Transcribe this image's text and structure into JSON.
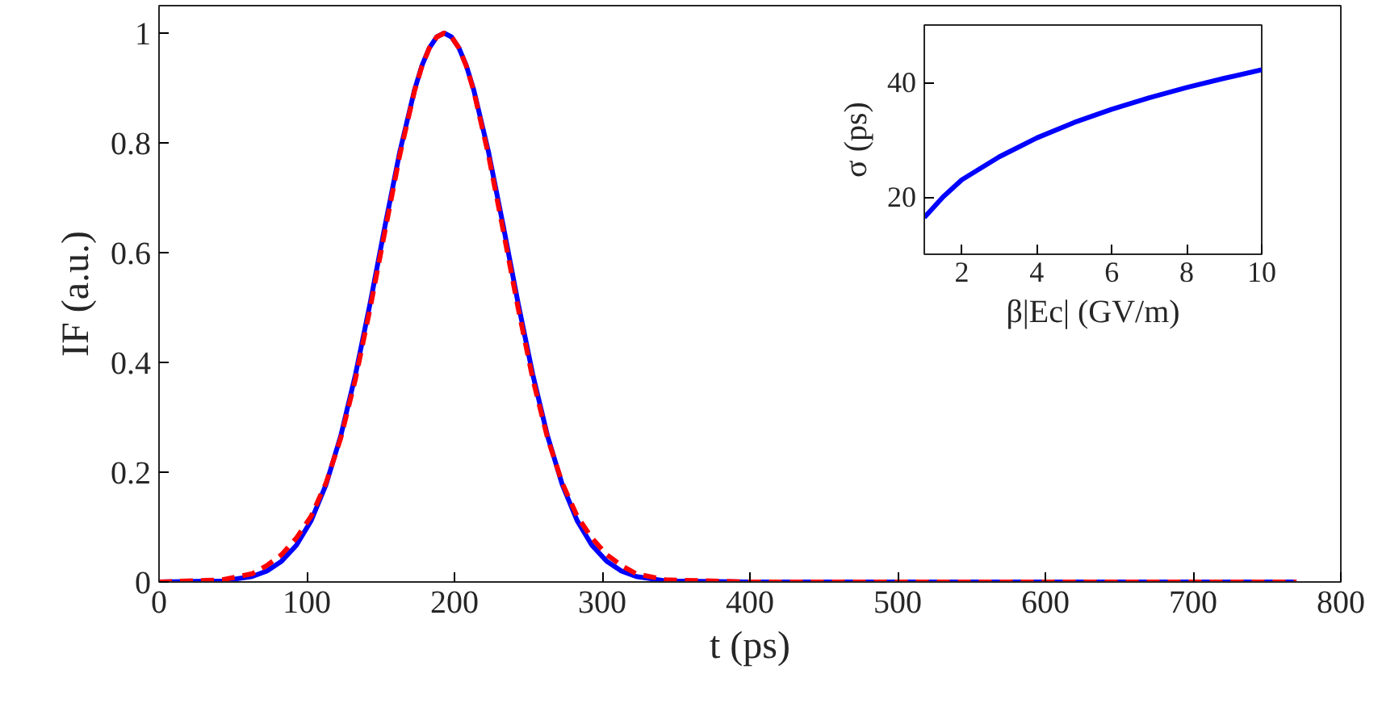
{
  "chart_data": [
    {
      "type": "line",
      "xlabel": "t (ps)",
      "ylabel": "IF (a.u.)",
      "xlim": [
        0,
        800
      ],
      "ylim": [
        0,
        1.05
      ],
      "xticks": [
        0,
        100,
        200,
        300,
        400,
        500,
        600,
        700,
        800
      ],
      "yticks": [
        0,
        0.2,
        0.4,
        0.6,
        0.8,
        1
      ],
      "grid": false,
      "series": [
        {
          "color": "#0000ff",
          "line_style": "solid",
          "x": [
            0,
            43,
            63,
            73,
            83,
            93,
            103,
            113,
            123,
            133,
            143,
            153,
            163,
            173,
            178,
            183,
            188,
            193,
            198,
            203,
            208,
            213,
            223,
            233,
            243,
            253,
            263,
            273,
            283,
            293,
            303,
            313,
            323,
            343,
            400,
            770
          ],
          "values": [
            0,
            0.002,
            0.01,
            0.02,
            0.038,
            0.067,
            0.112,
            0.177,
            0.266,
            0.378,
            0.509,
            0.649,
            0.784,
            0.897,
            0.941,
            0.973,
            0.993,
            1,
            0.993,
            0.973,
            0.941,
            0.897,
            0.784,
            0.649,
            0.509,
            0.378,
            0.266,
            0.177,
            0.112,
            0.067,
            0.038,
            0.02,
            0.01,
            0.002,
            0,
            0
          ]
        },
        {
          "color": "#ff0000",
          "line_style": "dashed",
          "x": [
            0,
            43,
            63,
            73,
            83,
            93,
            103,
            113,
            123,
            133,
            143,
            153,
            163,
            173,
            178,
            183,
            188,
            193,
            198,
            203,
            208,
            213,
            223,
            233,
            243,
            253,
            263,
            273,
            283,
            293,
            303,
            313,
            323,
            343,
            400,
            770
          ],
          "values": [
            0,
            0.004,
            0.015,
            0.03,
            0.05,
            0.08,
            0.12,
            0.18,
            0.262,
            0.37,
            0.5,
            0.64,
            0.778,
            0.895,
            0.94,
            0.973,
            0.993,
            1,
            0.993,
            0.973,
            0.94,
            0.895,
            0.778,
            0.64,
            0.5,
            0.37,
            0.262,
            0.18,
            0.12,
            0.08,
            0.05,
            0.03,
            0.015,
            0.004,
            0,
            0
          ]
        }
      ]
    },
    {
      "type": "line",
      "xlabel": "β|Ec| (GV/m)",
      "ylabel": "σ (ps)",
      "xlim": [
        1,
        10
      ],
      "ylim": [
        10,
        50
      ],
      "xticks": [
        2,
        4,
        6,
        8,
        10
      ],
      "yticks": [
        20,
        40
      ],
      "grid": false,
      "series": [
        {
          "color": "#0000ff",
          "line_style": "solid",
          "x": [
            1,
            1.5,
            2,
            3,
            4,
            5,
            6,
            7,
            8,
            9,
            10
          ],
          "values": [
            16.4,
            20.0,
            23.0,
            27.0,
            30.3,
            33.0,
            35.3,
            37.3,
            39.1,
            40.7,
            42.2
          ]
        }
      ]
    }
  ]
}
